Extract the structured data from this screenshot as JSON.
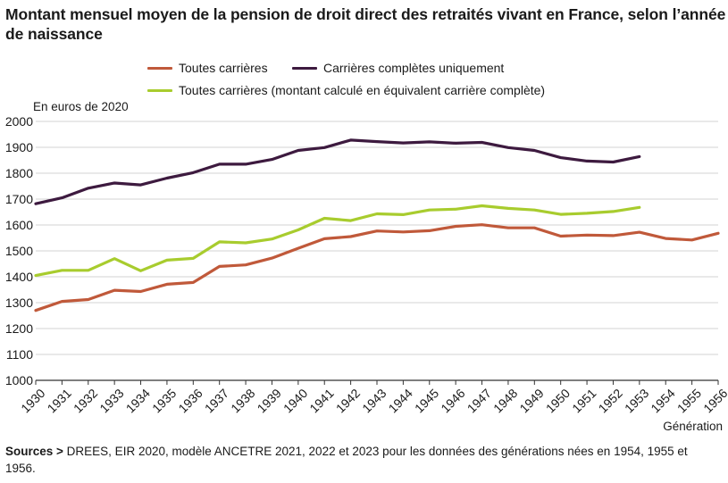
{
  "title": "Montant mensuel moyen de la pension de droit direct des retraités vivant en France, selon l’année de naissance",
  "colors": {
    "toutes": "#c0593a",
    "completes": "#3d1a3f",
    "equivalent": "#a8cc2e",
    "grid": "#d3d3d3",
    "axis": "#333333"
  },
  "legend": {
    "toutes": "Toutes carrières",
    "completes": "Carrières complètes uniquement",
    "equivalent": "Toutes carrières (montant calculé en équivalent carrière complète)"
  },
  "y_unit_label": "En euros de 2020",
  "x_axis_title": "Génération",
  "source": {
    "prefix": "Sources >",
    "text": " DREES, EIR 2020, modèle ANCETRE 2021, 2022 et 2023 pour les données des générations nées en 1954, 1955 et 1956."
  },
  "chart_data": {
    "type": "line",
    "x": [
      1930,
      1931,
      1932,
      1933,
      1934,
      1935,
      1936,
      1937,
      1938,
      1939,
      1940,
      1941,
      1942,
      1943,
      1944,
      1945,
      1946,
      1947,
      1948,
      1949,
      1950,
      1951,
      1952,
      1953,
      1954,
      1955,
      1956
    ],
    "ylim": [
      1000,
      2000
    ],
    "yticks": [
      1000,
      1100,
      1200,
      1300,
      1400,
      1500,
      1600,
      1700,
      1800,
      1900,
      2000
    ],
    "grid": "horizontal",
    "legend_position": "top",
    "series": [
      {
        "key": "toutes",
        "name": "Toutes carrières",
        "values": [
          1270,
          1305,
          1312,
          1348,
          1343,
          1371,
          1378,
          1440,
          1446,
          1472,
          1510,
          1547,
          1555,
          1577,
          1573,
          1578,
          1595,
          1601,
          1589,
          1589,
          1557,
          1561,
          1559,
          1572,
          1548,
          1542,
          1568
        ]
      },
      {
        "key": "completes",
        "name": "Carrières complètes uniquement",
        "values": [
          1682,
          1705,
          1742,
          1762,
          1755,
          1781,
          1802,
          1835,
          1835,
          1853,
          1888,
          1899,
          1928,
          1922,
          1917,
          1921,
          1916,
          1919,
          1899,
          1888,
          1860,
          1847,
          1843,
          1864,
          null,
          null,
          null
        ]
      },
      {
        "key": "equivalent",
        "name": "Toutes carrières (montant calculé en équivalent carrière complète)",
        "values": [
          1405,
          1425,
          1425,
          1470,
          1423,
          1464,
          1471,
          1535,
          1531,
          1546,
          1581,
          1626,
          1617,
          1643,
          1640,
          1658,
          1661,
          1674,
          1664,
          1658,
          1641,
          1645,
          1652,
          1668,
          null,
          null,
          null
        ]
      }
    ]
  }
}
